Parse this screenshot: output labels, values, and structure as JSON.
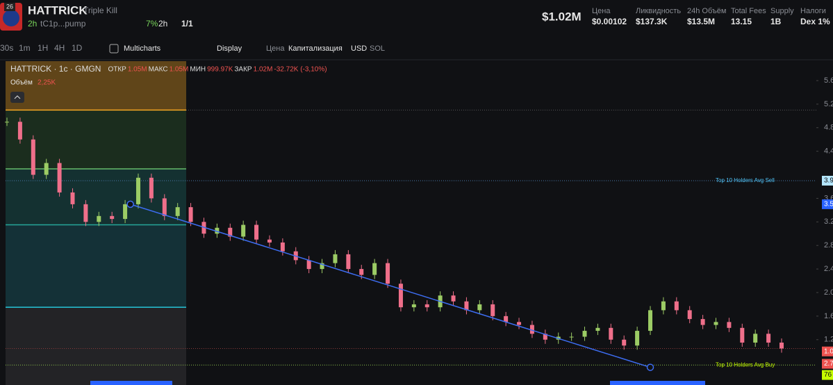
{
  "header": {
    "ticker": "HATTRICK",
    "name": "Triple Kill",
    "badge": "26",
    "age": "2h",
    "address": "tC1p...pump",
    "holders_change": "7%",
    "holders_period": "2h",
    "counts": "1/1"
  },
  "stats": {
    "market_cap": "$1.02M",
    "items": [
      {
        "label": "Цена",
        "value": "$0.00102"
      },
      {
        "label": "Ликвидность",
        "value": "$137.3K"
      },
      {
        "label": "24h Объём",
        "value": "$13.5M"
      },
      {
        "label": "Total Fees",
        "value": "13.15"
      },
      {
        "label": "Supply",
        "value": "1B"
      },
      {
        "label": "Налоги",
        "value": "Dex 1%"
      }
    ]
  },
  "toolbar": {
    "intervals": [
      "30s",
      "1m",
      "1H",
      "4H",
      "1D"
    ],
    "multicharts": "Multicharts",
    "display": "Display",
    "price": "Цена",
    "cap": "Капитализация",
    "usd": "USD",
    "sol": "SOL"
  },
  "legend": {
    "symbol": "HATTRICK · 1с · GMGN",
    "open_label": "ОТКР",
    "open": "1.05M",
    "high_label": "МАКС",
    "high": "1.05M",
    "low_label": "МИН",
    "low": "999.97K",
    "close_label": "ЗАКР",
    "close": "1.02M",
    "change": "-32.72K (-3,10%)",
    "volume_label": "Объём",
    "volume": "2,25K"
  },
  "chart_data": {
    "type": "candlestick",
    "up_color": "#9ccc65",
    "down_color": "#ef6f8a",
    "close": [
      4.9,
      4.6,
      4.0,
      4.2,
      3.7,
      3.5,
      3.2,
      3.3,
      3.25,
      3.5,
      3.95,
      3.6,
      3.3,
      3.45,
      3.2,
      3.0,
      3.1,
      2.95,
      3.15,
      2.9,
      2.85,
      2.7,
      2.55,
      2.4,
      2.5,
      2.65,
      2.4,
      2.3,
      2.5,
      2.15,
      1.75,
      1.8,
      1.75,
      1.95,
      1.85,
      1.7,
      1.8,
      1.6,
      1.5,
      1.45,
      1.3,
      1.2,
      1.25,
      1.25,
      1.35,
      1.4,
      1.2,
      1.1,
      1.35,
      1.7,
      1.85,
      1.7,
      1.55,
      1.45,
      1.5,
      1.4,
      1.15,
      1.3,
      1.15,
      1.05
    ],
    "ylim": [
      0.43,
      5.93
    ],
    "yticks": [
      5.6,
      5.2,
      4.8,
      4.4,
      3.6,
      3.2,
      2.8,
      2.4,
      {
        "value": 2,
        "label": "2.0"
      },
      1.6,
      1.2
    ],
    "levels": [
      {
        "value": 5.1,
        "color": "#f5a623"
      },
      {
        "value": 4.1,
        "color": "#66bb6a"
      },
      {
        "value": 3.15,
        "color": "#26a69a"
      },
      {
        "value": 1.75,
        "color": "#26c6da"
      }
    ],
    "annotations": [
      {
        "label": "Top 10 Holders Avg Sell",
        "value": 3.9,
        "color": "#4fc3f7"
      },
      {
        "label": "Top 10 Holders Avg Buy",
        "value": 0.77,
        "color": "#c6ff00"
      }
    ],
    "trendline": {
      "x": [
        9.4,
        49
      ],
      "y": [
        3.5,
        0.73
      ],
      "color": "#3d6df2"
    },
    "markers": [
      {
        "label": "3.9",
        "value": 3.9,
        "color": "#b3e5fc"
      },
      {
        "label": "3.5",
        "value": 3.5,
        "color": "#2962ff"
      },
      {
        "label": "1.0",
        "value": 1.0,
        "color": "#ef5350"
      },
      {
        "label": "2.7",
        "value": 0.79,
        "color": "#ef5350"
      },
      {
        "label": "76",
        "value": 0.6,
        "color": "#c6ff00"
      }
    ]
  }
}
